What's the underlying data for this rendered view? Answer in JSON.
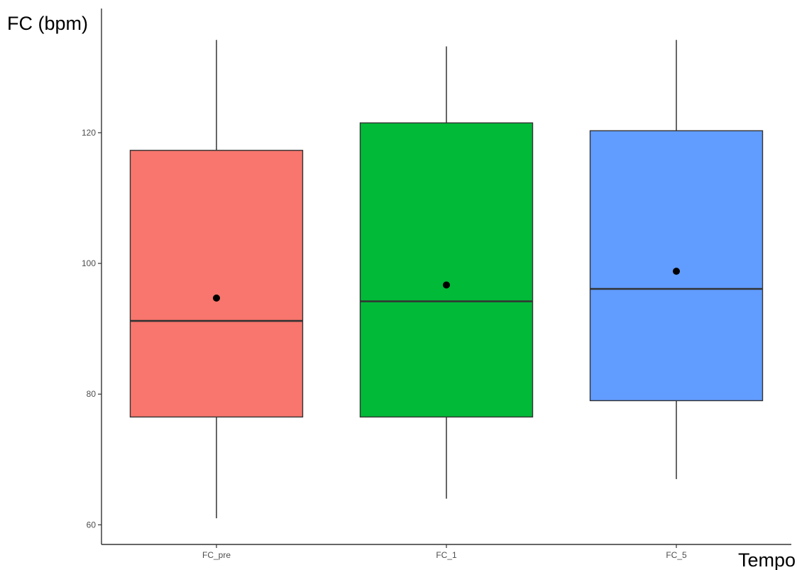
{
  "chart_data": {
    "type": "box",
    "title": "",
    "ylabel": "FC (bpm)",
    "xlabel": "Tempo",
    "ylim": [
      57,
      139
    ],
    "yticks": [
      60,
      80,
      100,
      120
    ],
    "grid": false,
    "legend": "none",
    "categories": [
      "FC_pre",
      "FC_1",
      "FC_5"
    ],
    "colors": [
      "#f8766d",
      "#00ba38",
      "#619cff"
    ],
    "boxes": [
      {
        "category": "FC_pre",
        "min": 61,
        "q1": 76.5,
        "median": 91.2,
        "q3": 117.3,
        "max": 134.2,
        "mean": 94.7
      },
      {
        "category": "FC_1",
        "min": 64,
        "q1": 76.5,
        "median": 94.2,
        "q3": 121.5,
        "max": 133.2,
        "mean": 96.7
      },
      {
        "category": "FC_5",
        "min": 67,
        "q1": 79,
        "median": 96.1,
        "q3": 120.3,
        "max": 134.2,
        "mean": 98.8
      }
    ]
  }
}
